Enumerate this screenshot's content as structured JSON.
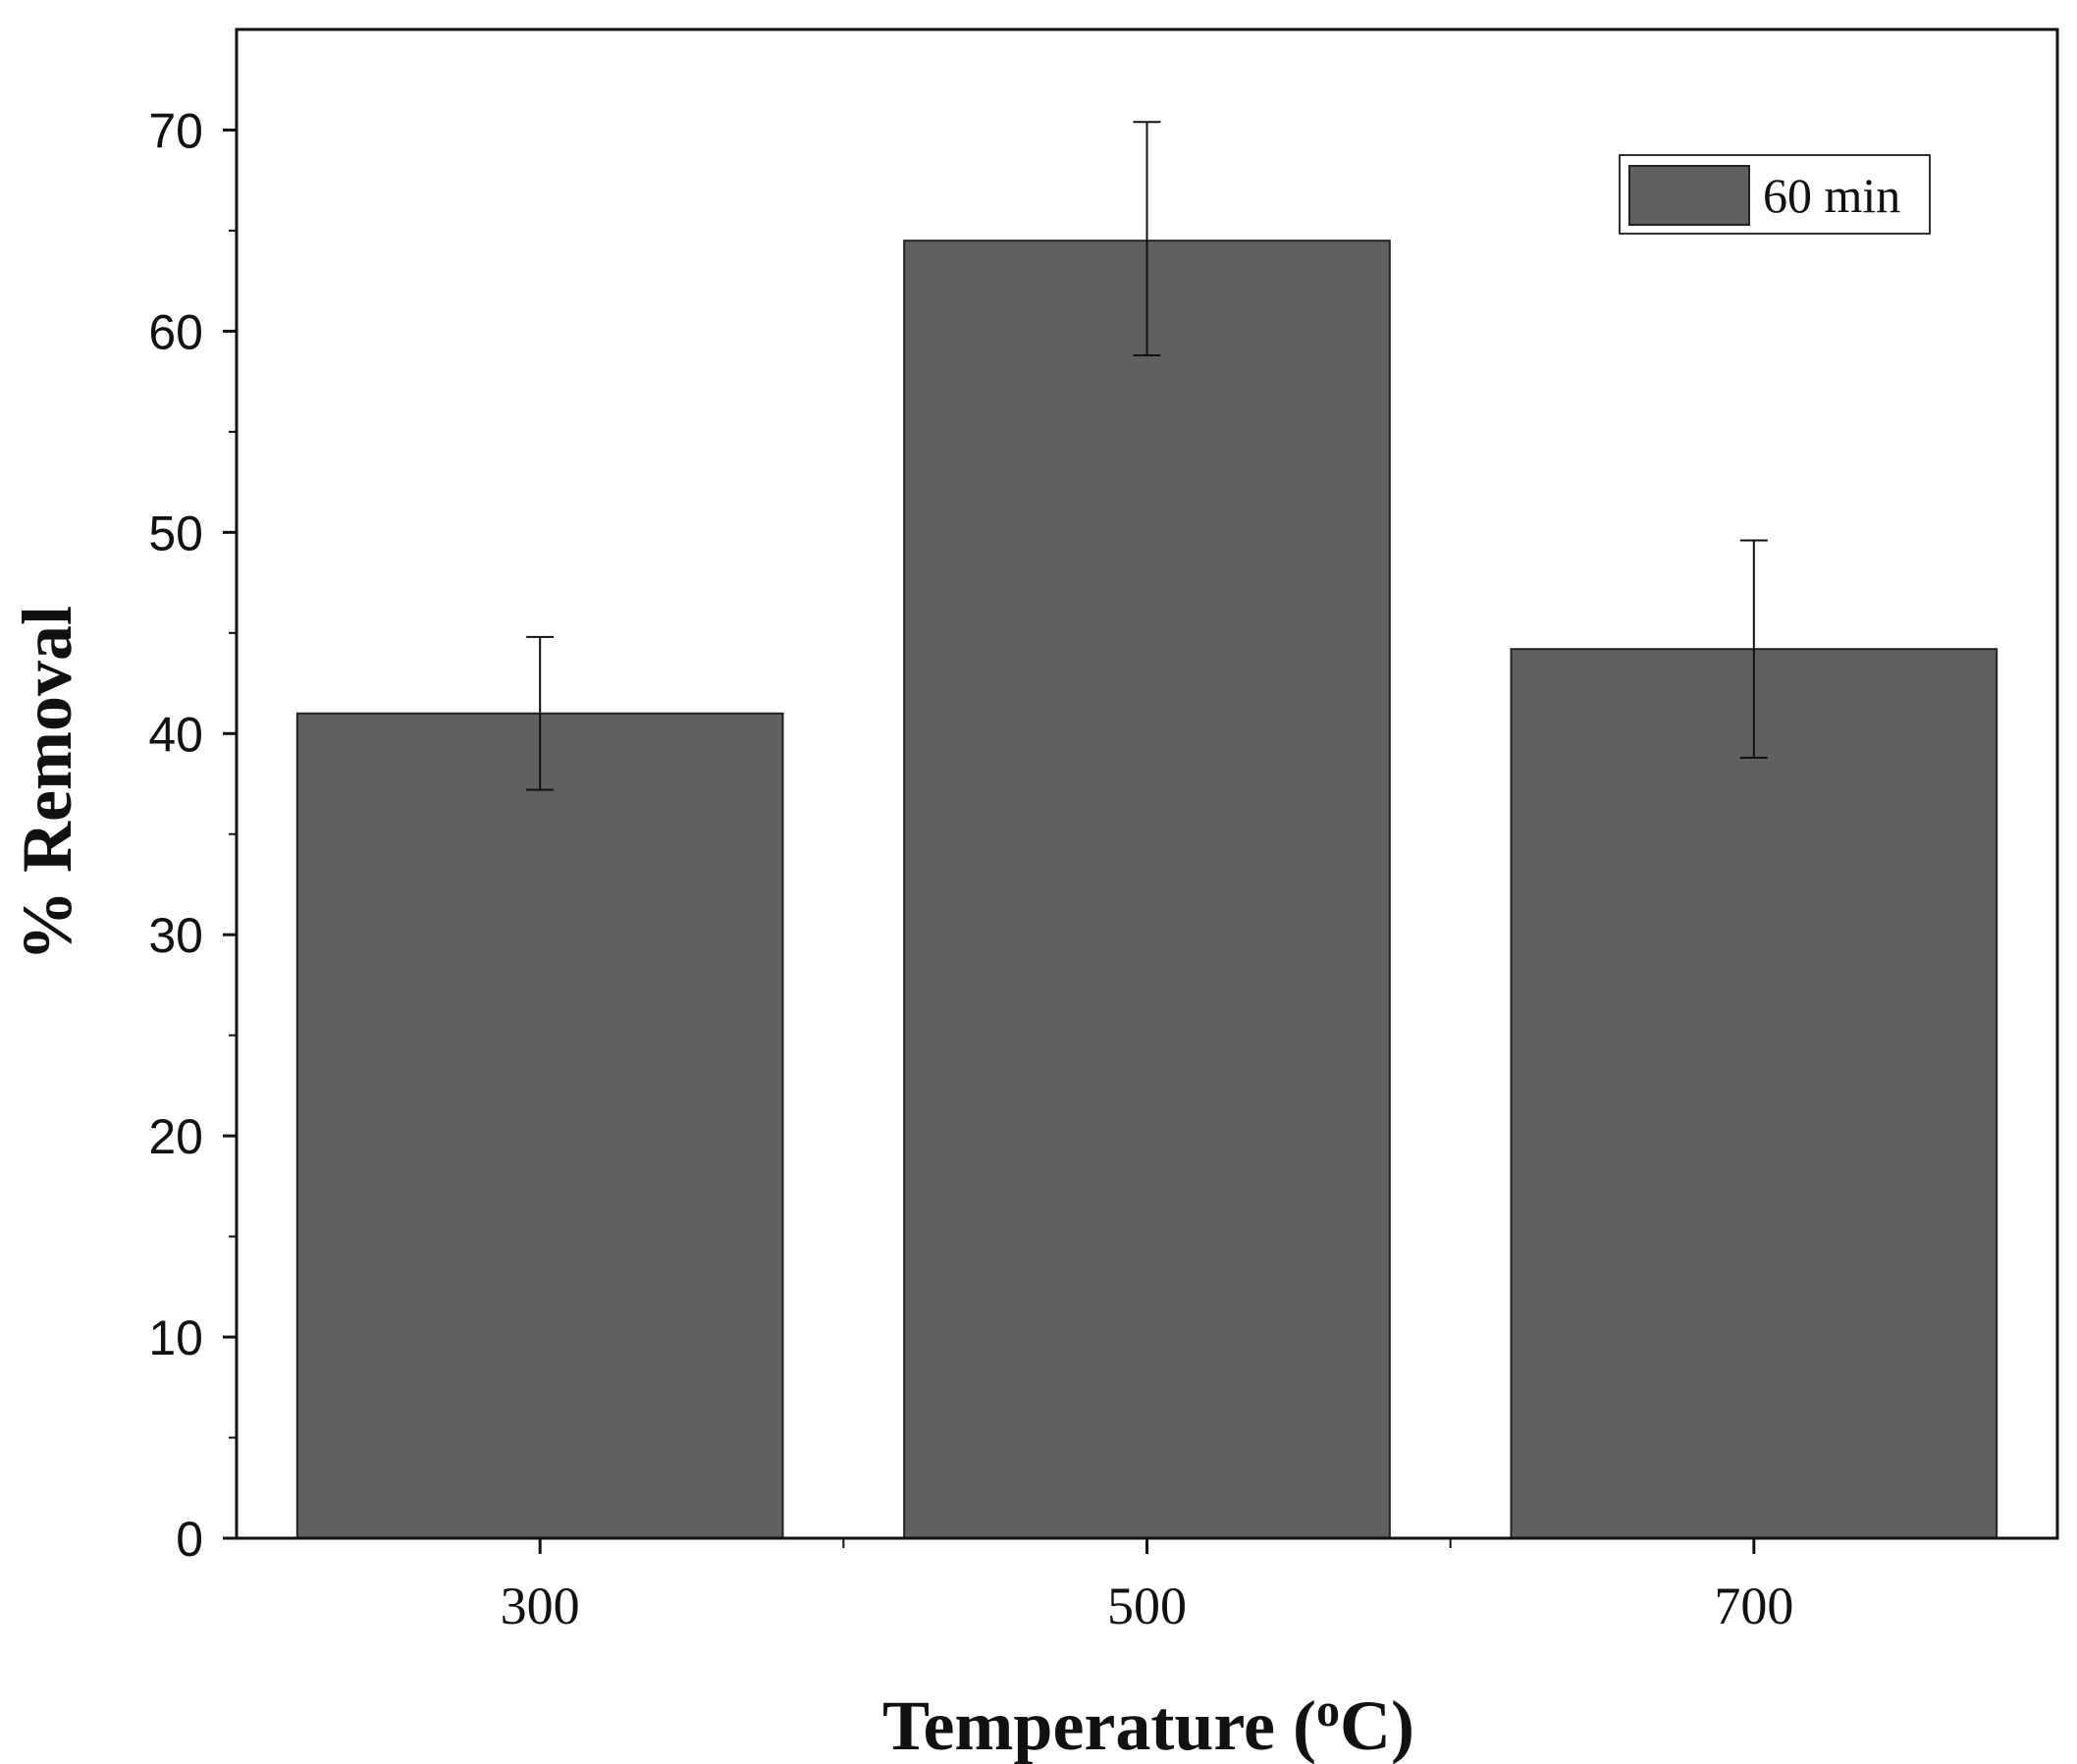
{
  "chart_data": {
    "type": "bar",
    "categories": [
      "300",
      "500",
      "700"
    ],
    "series": [
      {
        "name": "60 min",
        "values": [
          41.0,
          64.5,
          44.2
        ],
        "error": [
          [
            37.2,
            44.8
          ],
          [
            58.8,
            70.4
          ],
          [
            38.8,
            49.6
          ]
        ]
      }
    ],
    "xlabel": "Temperature (",
    "xlabel_sup": "o",
    "xlabel_suffix": "C)",
    "ylabel": "% Removal",
    "ylim": [
      0,
      75
    ],
    "yticks": [
      "0",
      "10",
      "20",
      "30",
      "40",
      "50",
      "60",
      "70"
    ],
    "bar_color": "#606060",
    "legend_position": "top-right",
    "grid": false
  }
}
